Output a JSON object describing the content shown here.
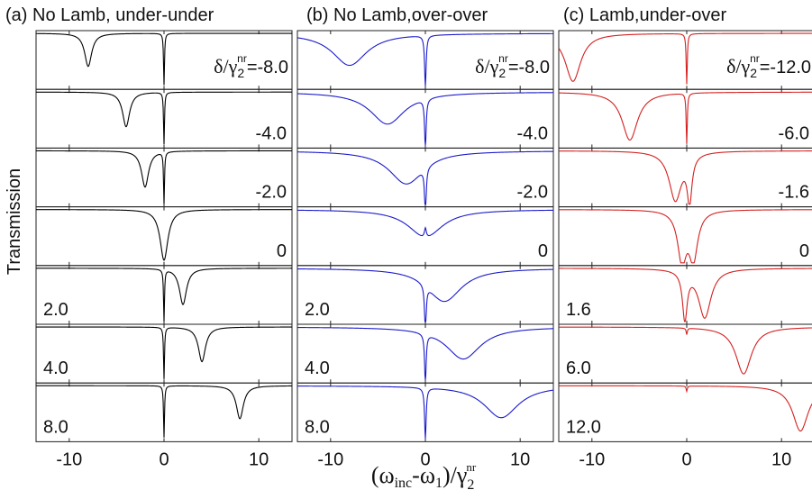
{
  "ylabel": "Transmission",
  "xlabel": {
    "open": "(ω",
    "inc": "inc",
    "mid": "-ω",
    "one": "1",
    "close": ")/γ",
    "sub2": "2",
    "sup": "nr"
  },
  "delta_label": {
    "prefix": "δ/γ",
    "sub": "2",
    "sup": "nr",
    "eq": "="
  },
  "x_ticks": [
    "-10",
    "0",
    "10"
  ],
  "colors": {
    "a": "#000000",
    "b": "#1a1acc",
    "c": "#d42020"
  },
  "chart_data": [
    {
      "type": "line",
      "title": "(a) No Lamb, under-under",
      "xlim": [
        -13.5,
        13.5
      ],
      "xticks": [
        -10,
        0,
        10
      ],
      "xlabel": "(ω_inc-ω_1)/γ_2^nr",
      "ylabel": "Transmission",
      "series": [
        {
          "delta": -8.0,
          "label": "-8.0",
          "label_side": "right",
          "dips": [
            {
              "x0": -8.0,
              "w": 0.45,
              "d": 0.62
            },
            {
              "x0": 0,
              "w": 0.06,
              "d": 0.97
            }
          ]
        },
        {
          "delta": -4.0,
          "label": "-4.0",
          "label_side": "right",
          "dips": [
            {
              "x0": -4.0,
              "w": 0.45,
              "d": 0.65
            },
            {
              "x0": 0,
              "w": 0.06,
              "d": 0.97
            }
          ]
        },
        {
          "delta": -2.0,
          "label": "-2.0",
          "label_side": "right",
          "dips": [
            {
              "x0": -2.0,
              "w": 0.45,
              "d": 0.68
            },
            {
              "x0": 0,
              "w": 0.06,
              "d": 0.97
            }
          ]
        },
        {
          "delta": 0,
          "label": "0",
          "label_side": "right",
          "dips": [
            {
              "x0": 0,
              "w": 0.5,
              "d": 0.95
            }
          ]
        },
        {
          "delta": 2.0,
          "label": "2.0",
          "label_side": "left",
          "dips": [
            {
              "x0": 2.0,
              "w": 0.45,
              "d": 0.68
            },
            {
              "x0": 0,
              "w": 0.06,
              "d": 0.97
            }
          ]
        },
        {
          "delta": 4.0,
          "label": "4.0",
          "label_side": "left",
          "dips": [
            {
              "x0": 4.0,
              "w": 0.45,
              "d": 0.65
            },
            {
              "x0": 0,
              "w": 0.06,
              "d": 0.97
            }
          ]
        },
        {
          "delta": 8.0,
          "label": "8.0",
          "label_side": "left",
          "dips": [
            {
              "x0": 8.0,
              "w": 0.45,
              "d": 0.62
            },
            {
              "x0": 0,
              "w": 0.06,
              "d": 0.97
            }
          ]
        }
      ]
    },
    {
      "type": "line",
      "title": "(b) No Lamb,over-over",
      "xlim": [
        -13.5,
        13.5
      ],
      "xticks": [
        -10,
        0,
        10
      ],
      "xlabel": "(ω_inc-ω_1)/γ_2^nr",
      "ylabel": "Transmission",
      "series": [
        {
          "delta": -8.0,
          "label": "-8.0",
          "label_side": "right",
          "dips": [
            {
              "x0": -8.0,
              "w": 2.2,
              "d": 0.6
            },
            {
              "x0": 0,
              "w": 0.1,
              "d": 0.95
            }
          ]
        },
        {
          "delta": -4.0,
          "label": "-4.0",
          "label_side": "right",
          "dips": [
            {
              "x0": -4.0,
              "w": 2.2,
              "d": 0.6
            },
            {
              "x0": 0,
              "w": 0.1,
              "d": 0.92
            }
          ]
        },
        {
          "delta": -2.0,
          "label": "-2.0",
          "label_side": "right",
          "dips": [
            {
              "x0": -2.0,
              "w": 2.2,
              "d": 0.62
            },
            {
              "x0": 0,
              "w": 0.1,
              "d": 0.92
            }
          ]
        },
        {
          "delta": 0,
          "label": "0",
          "label_side": "right",
          "dips": [
            {
              "x0": 0,
              "w": 2.2,
              "d": 0.52
            },
            {
              "x0": 0,
              "w": 0.12,
              "d": -0.18
            }
          ]
        },
        {
          "delta": 2.0,
          "label": "2.0",
          "label_side": "left",
          "dips": [
            {
              "x0": 2.0,
              "w": 2.2,
              "d": 0.62
            },
            {
              "x0": 0,
              "w": 0.1,
              "d": 0.92
            }
          ]
        },
        {
          "delta": 4.0,
          "label": "4.0",
          "label_side": "left",
          "dips": [
            {
              "x0": 4.0,
              "w": 2.2,
              "d": 0.6
            },
            {
              "x0": 0,
              "w": 0.1,
              "d": 0.92
            }
          ]
        },
        {
          "delta": 8.0,
          "label": "8.0",
          "label_side": "left",
          "dips": [
            {
              "x0": 8.0,
              "w": 2.2,
              "d": 0.6
            },
            {
              "x0": 0,
              "w": 0.1,
              "d": 0.95
            }
          ]
        }
      ]
    },
    {
      "type": "line",
      "title": "(c) Lamb,under-over",
      "xlim": [
        -13.5,
        13.5
      ],
      "xticks": [
        -10,
        0,
        10
      ],
      "xlabel": "(ω_inc-ω_1)/γ_2^nr",
      "ylabel": "Transmission",
      "series": [
        {
          "delta": -12.0,
          "label": "-12.0",
          "label_side": "right",
          "dips": [
            {
              "x0": -12.0,
              "w": 1.0,
              "d": 0.9
            },
            {
              "x0": 0,
              "w": 0.07,
              "d": 0.95
            }
          ]
        },
        {
          "delta": -6.0,
          "label": "-6.0",
          "label_side": "right",
          "dips": [
            {
              "x0": -6.0,
              "w": 1.0,
              "d": 0.9
            },
            {
              "x0": 0,
              "w": 0.07,
              "d": 0.95
            }
          ]
        },
        {
          "delta": -1.6,
          "label": "-1.6",
          "label_side": "right",
          "dips": [
            {
              "x0": -1.2,
              "w": 0.8,
              "d": 0.92
            },
            {
              "x0": 0.3,
              "w": 0.3,
              "d": 0.85
            }
          ]
        },
        {
          "delta": 0,
          "label": "0",
          "label_side": "right",
          "dips": [
            {
              "x0": -0.5,
              "w": 0.55,
              "d": 0.93
            },
            {
              "x0": 0.7,
              "w": 0.55,
              "d": 0.88
            }
          ]
        },
        {
          "delta": 1.6,
          "label": "1.6",
          "label_side": "left",
          "dips": [
            {
              "x0": 1.9,
              "w": 0.8,
              "d": 0.92
            },
            {
              "x0": -0.2,
              "w": 0.3,
              "d": 0.9
            }
          ]
        },
        {
          "delta": 6.0,
          "label": "6.0",
          "label_side": "left",
          "dips": [
            {
              "x0": 6.0,
              "w": 1.0,
              "d": 0.88
            },
            {
              "x0": 0,
              "w": 0.07,
              "d": 0.12
            }
          ]
        },
        {
          "delta": 12.0,
          "label": "12.0",
          "label_side": "left",
          "dips": [
            {
              "x0": 12.0,
              "w": 1.0,
              "d": 0.85
            },
            {
              "x0": 0,
              "w": 0.07,
              "d": 0.1
            }
          ]
        }
      ]
    }
  ]
}
